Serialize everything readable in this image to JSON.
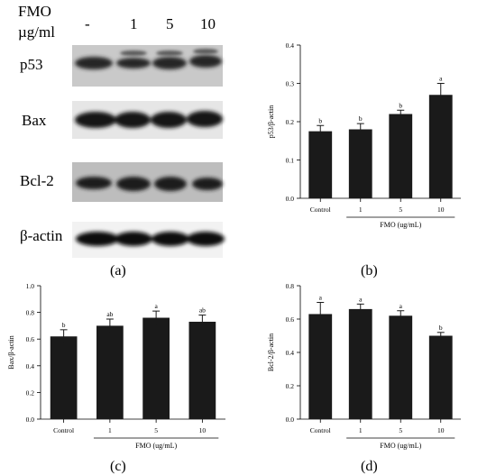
{
  "blot": {
    "header_line1": "FMO",
    "header_line2": "µg/ml",
    "lane_labels": [
      "-",
      "1",
      "5",
      "10"
    ],
    "rows": [
      "p53",
      "Bax",
      "Bcl-2",
      "β-actin"
    ]
  },
  "panel_labels": {
    "a": "(a)",
    "b": "(b)",
    "c": "(c)",
    "d": "(d)"
  },
  "chart_data": [
    {
      "panel": "b",
      "type": "bar",
      "categories": [
        "Control",
        "1",
        "5",
        "10"
      ],
      "values": [
        0.175,
        0.18,
        0.22,
        0.27
      ],
      "errors": [
        0.015,
        0.015,
        0.01,
        0.03
      ],
      "significance": [
        "b",
        "b",
        "b",
        "a"
      ],
      "ylabel": "p53/β-actin",
      "xlabel": "FMO (ug/mL)",
      "ylim": [
        0,
        0.4
      ],
      "yticks": [
        0.0,
        0.1,
        0.2,
        0.3,
        0.4
      ],
      "bar_color": "#1a1a1a"
    },
    {
      "panel": "c",
      "type": "bar",
      "categories": [
        "Control",
        "1",
        "5",
        "10"
      ],
      "values": [
        0.62,
        0.7,
        0.76,
        0.73
      ],
      "errors": [
        0.05,
        0.05,
        0.05,
        0.05
      ],
      "significance": [
        "b",
        "ab",
        "a",
        "ab"
      ],
      "ylabel": "Bax/β-actin",
      "xlabel": "FMO (ug/mL)",
      "ylim": [
        0,
        1.0
      ],
      "yticks": [
        0.0,
        0.2,
        0.4,
        0.6,
        0.8,
        1.0
      ],
      "bar_color": "#1a1a1a"
    },
    {
      "panel": "d",
      "type": "bar",
      "categories": [
        "Control",
        "1",
        "5",
        "10"
      ],
      "values": [
        0.63,
        0.66,
        0.62,
        0.5
      ],
      "errors": [
        0.07,
        0.03,
        0.03,
        0.02
      ],
      "significance": [
        "a",
        "a",
        "a",
        "b"
      ],
      "ylabel": "Bcl-2/β-actin",
      "xlabel": "FMO (ug/mL)",
      "ylim": [
        0,
        0.8
      ],
      "yticks": [
        0.0,
        0.2,
        0.4,
        0.6,
        0.8
      ],
      "bar_color": "#1a1a1a"
    }
  ]
}
